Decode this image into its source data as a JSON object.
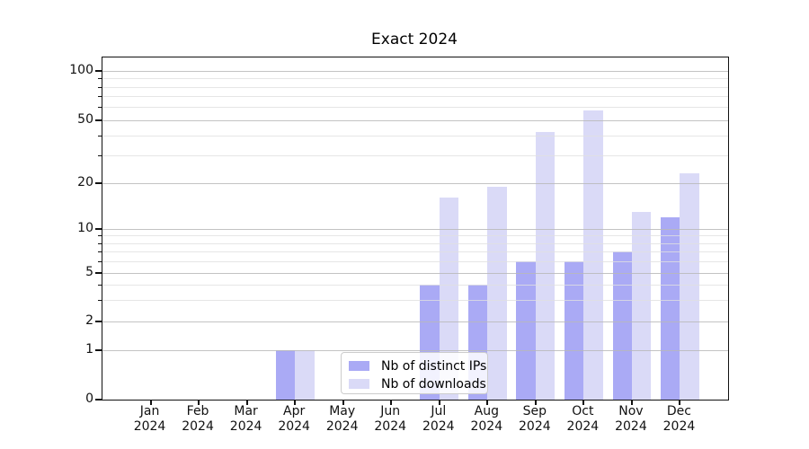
{
  "title": "Exact 2024",
  "chart_data": {
    "type": "bar",
    "title": "Exact 2024",
    "x_labels": [
      {
        "month": "Jan",
        "year": "2024"
      },
      {
        "month": "Feb",
        "year": "2024"
      },
      {
        "month": "Mar",
        "year": "2024"
      },
      {
        "month": "Apr",
        "year": "2024"
      },
      {
        "month": "May",
        "year": "2024"
      },
      {
        "month": "Jun",
        "year": "2024"
      },
      {
        "month": "Jul",
        "year": "2024"
      },
      {
        "month": "Aug",
        "year": "2024"
      },
      {
        "month": "Sep",
        "year": "2024"
      },
      {
        "month": "Oct",
        "year": "2024"
      },
      {
        "month": "Nov",
        "year": "2024"
      },
      {
        "month": "Dec",
        "year": "2024"
      }
    ],
    "series": [
      {
        "name": "Nb of distinct IPs",
        "color": "#aaaaf5",
        "values": [
          0,
          0,
          0,
          1,
          0,
          0,
          4,
          4,
          6,
          6,
          7,
          12
        ]
      },
      {
        "name": "Nb of downloads",
        "color": "#dadaf7",
        "values": [
          0,
          0,
          0,
          1,
          0,
          0,
          16,
          19,
          42,
          57,
          13,
          23
        ]
      }
    ],
    "y_axis": {
      "scale": "log-like with 0 baseline",
      "ticks": [
        0,
        1,
        2,
        5,
        10,
        20,
        50,
        100
      ],
      "tick_labels": [
        "0",
        "1",
        "2",
        "5",
        "10",
        "20",
        "50",
        "100"
      ],
      "minor_gridlines": [
        3,
        4,
        6,
        7,
        8,
        9,
        30,
        40,
        60,
        70,
        80,
        90
      ],
      "ylim": [
        0,
        120
      ]
    },
    "grid": {
      "major_color": "#b9b9b9",
      "minor_color": "#e0e0e0"
    },
    "legend": {
      "position": "lower-center",
      "items": [
        "Nb of distinct IPs",
        "Nb of downloads"
      ]
    }
  }
}
